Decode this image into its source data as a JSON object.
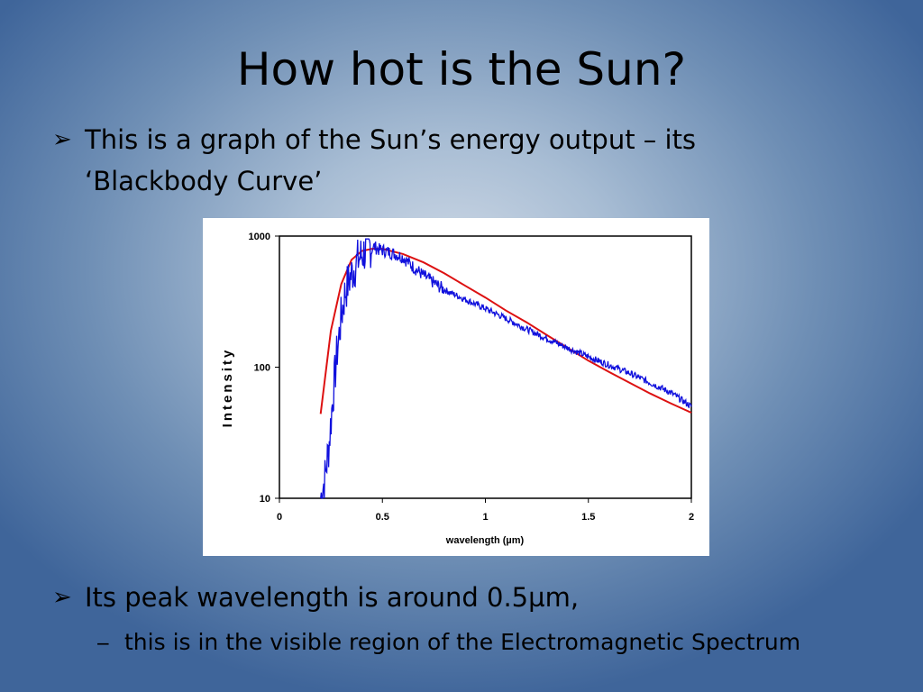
{
  "slide": {
    "title": "How hot is the Sun?",
    "bullets": [
      {
        "marker": "➢",
        "text": "This is a graph of the Sun’s energy output – its ‘Blackbody Curve’"
      },
      {
        "marker": "➢",
        "text": "Its peak wavelength is around 0.5µm,"
      }
    ],
    "sub_bullet": {
      "marker": "−",
      "text": "this is in the visible region of the Electromagnetic Spectrum"
    }
  },
  "colors": {
    "blackbody": "#dd1111",
    "measured": "#1010dd"
  },
  "chart_data": {
    "type": "line",
    "title": "",
    "xlabel": "wavelength (µm)",
    "ylabel": "Intensity",
    "xlim": [
      0,
      2
    ],
    "ylim": [
      10,
      1000
    ],
    "y_scale": "log",
    "grid": false,
    "x_ticks": [
      "0",
      "0.5",
      "1",
      "1.5",
      "2"
    ],
    "y_ticks": [
      "10",
      "100",
      "1000"
    ],
    "series": [
      {
        "style": "smooth red curve",
        "x": [
          0.2,
          0.25,
          0.3,
          0.35,
          0.4,
          0.45,
          0.5,
          0.6,
          0.7,
          0.8,
          0.9,
          1.0,
          1.1,
          1.2,
          1.3,
          1.4,
          1.5,
          1.6,
          1.7,
          1.8,
          1.9,
          2.0
        ],
        "y": [
          44,
          190,
          430,
          660,
          770,
          800,
          800,
          730,
          630,
          520,
          420,
          340,
          270,
          220,
          175,
          140,
          112,
          92,
          76,
          63,
          53,
          45
        ]
      },
      {
        "style": "noisy blue measured spectrum",
        "x": [
          0.2,
          0.22,
          0.24,
          0.26,
          0.28,
          0.3,
          0.32,
          0.34,
          0.36,
          0.38,
          0.4,
          0.42,
          0.44,
          0.46,
          0.48,
          0.5,
          0.55,
          0.6,
          0.65,
          0.7,
          0.75,
          0.8,
          0.9,
          1.0,
          1.1,
          1.2,
          1.3,
          1.4,
          1.5,
          1.6,
          1.7,
          1.8,
          1.9,
          2.0
        ],
        "y": [
          10,
          14,
          25,
          60,
          130,
          240,
          380,
          470,
          560,
          650,
          720,
          780,
          840,
          830,
          790,
          780,
          740,
          690,
          580,
          500,
          440,
          390,
          330,
          280,
          235,
          195,
          165,
          140,
          120,
          104,
          90,
          76,
          64,
          50
        ]
      }
    ]
  }
}
